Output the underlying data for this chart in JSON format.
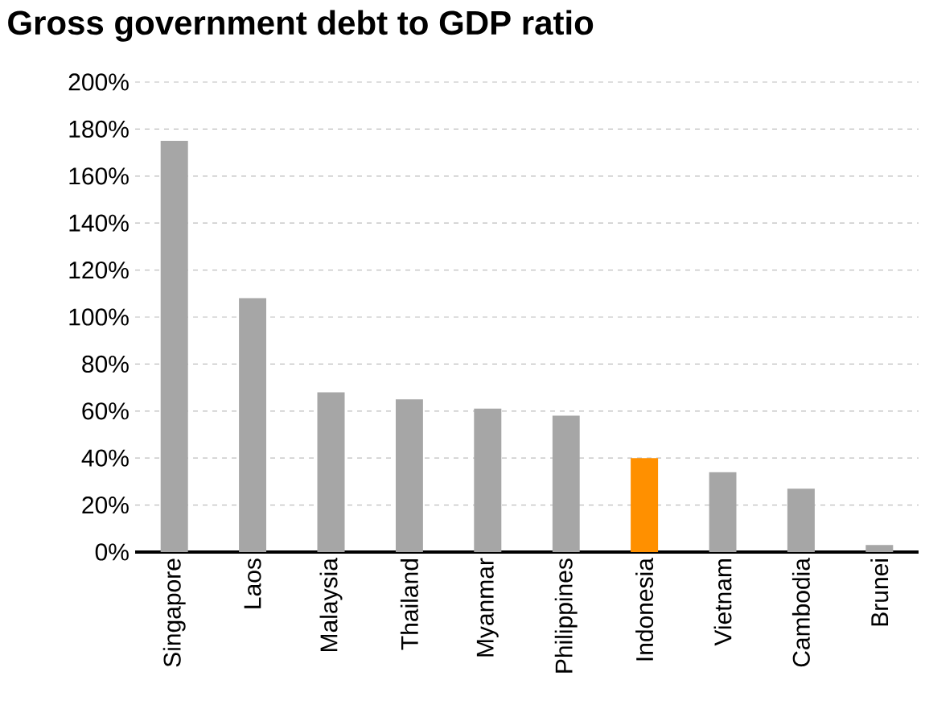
{
  "chart_data": {
    "type": "bar",
    "title": "Gross government debt to GDP ratio",
    "categories": [
      "Singapore",
      "Laos",
      "Malaysia",
      "Thailand",
      "Myanmar",
      "Philippines",
      "Indonesia",
      "Vietnam",
      "Cambodia",
      "Brunei"
    ],
    "values": [
      175,
      108,
      68,
      65,
      61,
      58,
      40,
      34,
      27,
      3
    ],
    "colors": [
      "#a6a6a6",
      "#a6a6a6",
      "#a6a6a6",
      "#a6a6a6",
      "#a6a6a6",
      "#a6a6a6",
      "#ff9000",
      "#a6a6a6",
      "#a6a6a6",
      "#a6a6a6"
    ],
    "ylim": [
      0,
      200
    ],
    "yticks": [
      {
        "value": 0,
        "label": "0%"
      },
      {
        "value": 20,
        "label": "20%"
      },
      {
        "value": 40,
        "label": "40%"
      },
      {
        "value": 60,
        "label": "60%"
      },
      {
        "value": 80,
        "label": "80%"
      },
      {
        "value": 100,
        "label": "100%"
      },
      {
        "value": 120,
        "label": "120%"
      },
      {
        "value": 140,
        "label": "140%"
      },
      {
        "value": 160,
        "label": "160%"
      },
      {
        "value": 180,
        "label": "180%"
      },
      {
        "value": 200,
        "label": "200%"
      }
    ],
    "grid": "y"
  }
}
